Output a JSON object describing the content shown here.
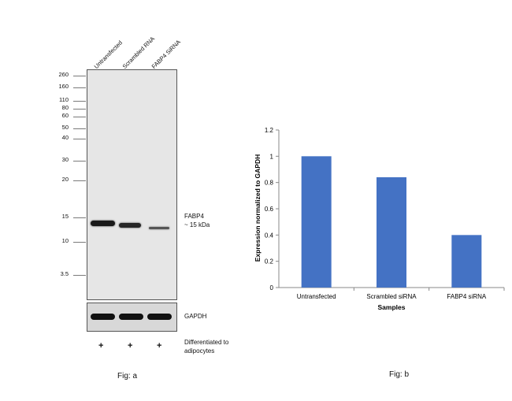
{
  "fig_a": {
    "lanes": [
      "Untransfected",
      "Scrambled RNA",
      "FABP4 SiRNA"
    ],
    "markers": [
      "260",
      "160",
      "110",
      "80",
      "60",
      "50",
      "40",
      "30",
      "20",
      "15",
      "10",
      "3.5"
    ],
    "band_label": "FABP4",
    "band_size": "~ 15 kDa",
    "loading_control": "GAPDH",
    "treatment_marks": [
      "+",
      "+",
      "+"
    ],
    "treatment_label_line1": "Differentiated to",
    "treatment_label_line2": "adipocytes",
    "caption": "Fig: a"
  },
  "fig_b": {
    "caption": "Fig: b"
  },
  "chart_data": {
    "type": "bar",
    "categories": [
      "Untransfected",
      "Scrambled siRNA",
      "FABP4 siRNA"
    ],
    "values": [
      1.0,
      0.84,
      0.4
    ],
    "xlabel": "Samples",
    "ylabel": "Expression normalized to GAPDH",
    "ylim": [
      0,
      1.2
    ],
    "yticks": [
      "0",
      "0.2",
      "0.4",
      "0.6",
      "0.8",
      "1",
      "1.2"
    ],
    "bar_color": "#4472C4",
    "grid": false
  }
}
